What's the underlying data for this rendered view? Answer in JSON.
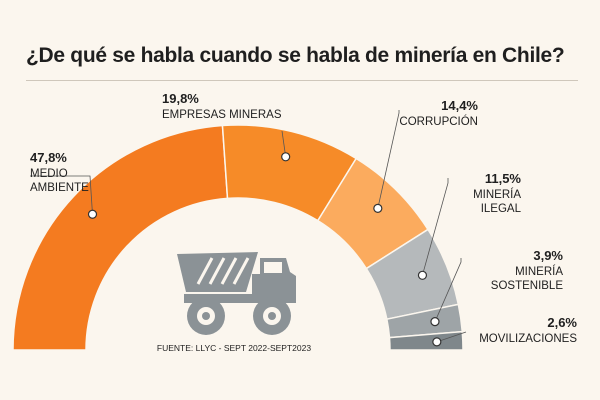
{
  "chart_data": {
    "type": "pie",
    "title": "¿De qué se habla cuando se habla de minería en Chile?",
    "source": "FUENTE: LLYC - SEPT 2022-SEPT2023",
    "slices": [
      {
        "value": 47.8,
        "value_label": "47,8%",
        "label_lines": [
          "MEDIO",
          "AMBIENTE"
        ],
        "color": "#f47b20"
      },
      {
        "value": 19.8,
        "value_label": "19,8%",
        "label_lines": [
          "EMPRESAS MINERAS"
        ],
        "color": "#f68b28"
      },
      {
        "value": 14.4,
        "value_label": "14,4%",
        "label_lines": [
          "CORRUPCIÓN"
        ],
        "color": "#fbab5e"
      },
      {
        "value": 11.5,
        "value_label": "11,5%",
        "label_lines": [
          "MINERÍA",
          "ILEGAL"
        ],
        "color": "#b5b9bb"
      },
      {
        "value": 3.9,
        "value_label": "3,9%",
        "label_lines": [
          "MINERÍA",
          "SOSTENIBLE"
        ],
        "color": "#9ea4a7"
      },
      {
        "value": 2.6,
        "value_label": "2,6%",
        "label_lines": [
          "MOVILIZACIONES"
        ],
        "color": "#7f878b"
      }
    ]
  },
  "colors": {
    "background": "#fbf6ee",
    "truck": "#8b9296",
    "leader": "#555555"
  },
  "icon": "mining-truck-icon"
}
